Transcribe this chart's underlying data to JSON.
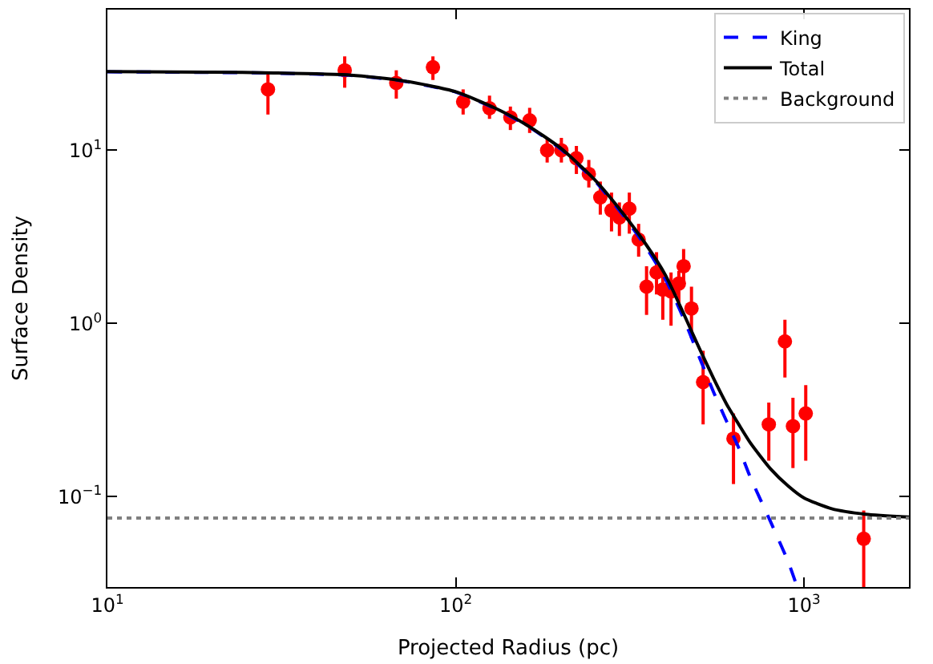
{
  "chart_data": {
    "type": "scatter",
    "xlabel": "Projected Radius (pc)",
    "ylabel": "Surface Density",
    "log": "xy",
    "xlim": [
      10,
      2000
    ],
    "ylim": [
      0.03,
      65
    ],
    "xticks": [
      {
        "value": 10,
        "label": "10$^{1}$"
      },
      {
        "value": 100,
        "label": "10$^{2}$"
      },
      {
        "value": 1000,
        "label": "10$^{3}$"
      }
    ],
    "yticks": [
      {
        "value": 0.1,
        "label": "10$^{−1}$"
      },
      {
        "value": 1,
        "label": "10$^{0}$"
      },
      {
        "value": 10,
        "label": "10$^{1}$"
      }
    ],
    "legend": "top right",
    "series": [
      {
        "color": "#ff0000",
        "marker": "circle",
        "x": [
          28.9,
          48,
          67.5,
          86,
          105,
          125,
          143.5,
          163,
          183,
          201,
          222,
          241,
          260,
          280,
          295,
          315,
          335,
          353,
          377,
          393,
          415,
          437,
          451,
          475,
          513,
          627,
          792,
          881,
          929,
          1011,
          1483
        ],
        "values": [
          22.5,
          29,
          24.5,
          30.2,
          19.1,
          17.5,
          15.5,
          14.9,
          10.0,
          10.0,
          9.0,
          7.3,
          5.35,
          4.5,
          4.1,
          4.6,
          3.05,
          1.63,
          1.97,
          1.57,
          1.53,
          1.7,
          2.14,
          1.22,
          0.458,
          0.216,
          0.261,
          0.787,
          0.255,
          0.302,
          0.057
        ],
        "errors": [
          [
            16.1,
            27.7
          ],
          [
            23.0,
            34.9
          ],
          [
            19.9,
            29.0
          ],
          [
            25.5,
            34.9
          ],
          [
            16.1,
            22.5
          ],
          [
            15.2,
            20.7
          ],
          [
            13.1,
            17.9
          ],
          [
            12.6,
            17.6
          ],
          [
            8.5,
            11.8
          ],
          [
            8.5,
            11.8
          ],
          [
            7.3,
            10.6
          ],
          [
            6.1,
            8.8
          ],
          [
            4.25,
            6.6
          ],
          [
            3.4,
            5.7
          ],
          [
            3.2,
            5.0
          ],
          [
            3.3,
            5.7
          ],
          [
            2.43,
            3.76
          ],
          [
            1.12,
            2.14
          ],
          [
            1.47,
            2.58
          ],
          [
            1.05,
            1.97
          ],
          [
            0.97,
            1.97
          ],
          [
            1.3,
            2.01
          ],
          [
            1.7,
            2.69
          ],
          [
            0.82,
            1.63
          ],
          [
            0.261,
            0.695
          ],
          [
            0.118,
            0.302
          ],
          [
            0.161,
            0.349
          ],
          [
            0.487,
            1.05
          ],
          [
            0.146,
            0.372
          ],
          [
            0.161,
            0.44
          ],
          [
            0.03,
            0.083
          ]
        ]
      },
      {
        "type": "line",
        "name": "King",
        "color": "#0000ff",
        "line_style": "dashed",
        "marker": "none",
        "x": [
          10,
          20,
          30,
          50,
          70,
          100,
          130,
          160,
          200,
          250,
          300,
          350,
          400,
          450,
          500,
          550,
          600,
          650,
          700,
          800,
          900,
          950
        ],
        "values": [
          28.4,
          28.2,
          27.9,
          27.1,
          25.2,
          21.7,
          17.4,
          13.9,
          10.2,
          6.7,
          4.3,
          2.8,
          1.8,
          1.08,
          0.64,
          0.4,
          0.27,
          0.19,
          0.13,
          0.072,
          0.042,
          0.031
        ]
      },
      {
        "type": "line",
        "name": "Total",
        "color": "#000000",
        "line_style": "solid",
        "marker": "none",
        "x": [
          10,
          20,
          30,
          50,
          70,
          100,
          130,
          160,
          200,
          250,
          300,
          350,
          400,
          450,
          500,
          550,
          600,
          650,
          700,
          800,
          900,
          1000,
          1200,
          1500,
          2000
        ],
        "values": [
          28.5,
          28.3,
          28,
          27.2,
          25.3,
          21.8,
          17.5,
          14,
          10.3,
          6.8,
          4.4,
          2.9,
          1.9,
          1.15,
          0.72,
          0.48,
          0.34,
          0.26,
          0.205,
          0.145,
          0.115,
          0.098,
          0.085,
          0.079,
          0.076
        ]
      }
    ],
    "ref_lines": [
      {
        "axis": "y",
        "value": 0.075,
        "label": "Background",
        "color": "#808080",
        "line_style": "dotted"
      }
    ]
  }
}
